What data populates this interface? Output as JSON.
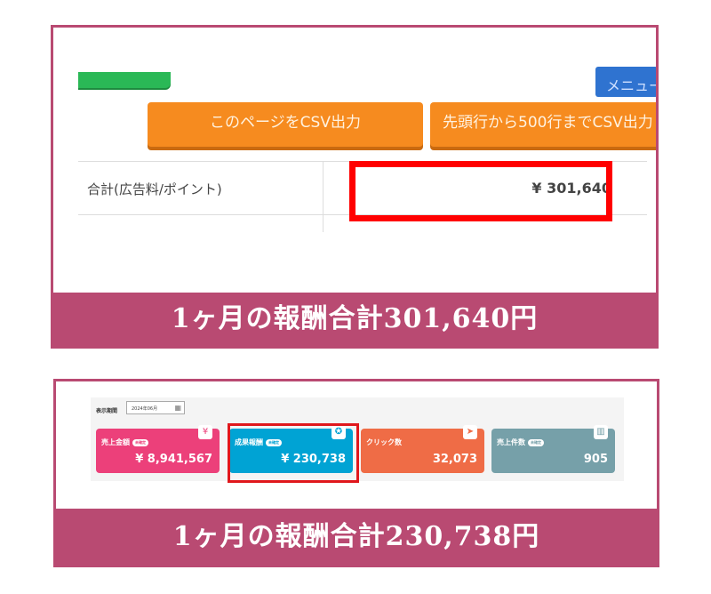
{
  "top": {
    "menu_button": "メニュー",
    "csv_page_button": "このページをCSV出力",
    "csv_500_button": "先頭行から500行までCSV出力",
    "total_label": "合計(広告料/ポイント)",
    "total_value": "¥ 301,640",
    "caption": "1ヶ月の報酬合計301,640円"
  },
  "bottom": {
    "period_label": "表示期間",
    "period_value": "2024年06月",
    "cards": [
      {
        "title": "売上金額",
        "badge": "未確定",
        "value": "¥ 8,941,567",
        "icon": "yen-icon",
        "color": "#ec407a"
      },
      {
        "title": "成果報酬",
        "badge": "未確定",
        "value": "¥ 230,738",
        "icon": "award-icon",
        "color": "#00a3d4"
      },
      {
        "title": "クリック数",
        "badge": "",
        "value": "32,073",
        "icon": "cursor-icon",
        "color": "#ef6c46"
      },
      {
        "title": "売上件数",
        "badge": "未確定",
        "value": "905",
        "icon": "box-icon",
        "color": "#76a0a9"
      }
    ],
    "caption": "1ヶ月の報酬合計230,738円"
  },
  "colors": {
    "frame": "#b94a72",
    "highlight": "#ff0000",
    "orange": "#f68b1f"
  }
}
